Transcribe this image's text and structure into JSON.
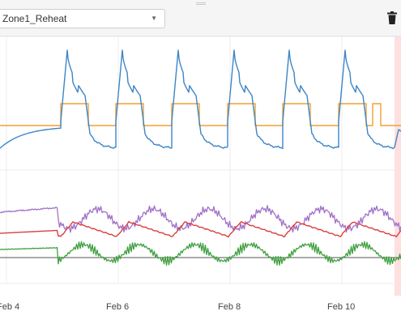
{
  "toolbar": {
    "selector_value": "Zone1_Reheat",
    "selector_icon": "chevron-down-icon",
    "delete_icon": "trash-icon"
  },
  "chart_data": {
    "type": "line",
    "x_tick_labels": [
      "Feb 4",
      "Feb 6",
      "Feb 8",
      "Feb 10"
    ],
    "grid": true,
    "panels": [
      {
        "series": [
          {
            "color": "#3d85c6"
          },
          {
            "color": "#f0a030"
          }
        ]
      },
      {
        "series": [
          {
            "color": "#a070c8"
          },
          {
            "color": "#d94040"
          },
          {
            "color": "#40a040"
          },
          {
            "color": "#555555"
          }
        ]
      }
    ],
    "highlight_color": "#ffe0e0"
  }
}
